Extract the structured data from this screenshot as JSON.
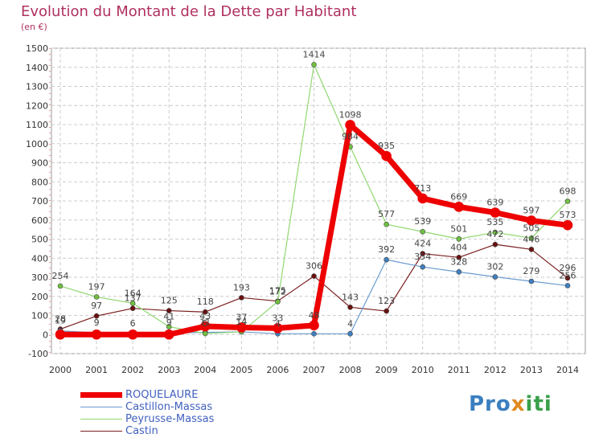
{
  "title": "Evolution du Montant de la Dette par Habitant",
  "subtitle": "(en €)",
  "logo": "Proxiti",
  "colors": {
    "background": "#ffffff",
    "grid": "#cccccc",
    "title": "#b03060",
    "legend_text": "#4060c0"
  },
  "chart_data": {
    "type": "line",
    "title": "Evolution du Montant de la Dette par Habitant",
    "subtitle": "(en €)",
    "xlabel": "",
    "ylabel": "",
    "x": [
      "2000",
      "2001",
      "2002",
      "2003",
      "2004",
      "2005",
      "2006",
      "2007",
      "2008",
      "2009",
      "2010",
      "2011",
      "2012",
      "2013",
      "2014"
    ],
    "ylim": [
      -100,
      1500
    ],
    "yticks": [
      -100,
      0,
      100,
      200,
      300,
      400,
      500,
      600,
      700,
      800,
      900,
      1000,
      1100,
      1200,
      1300,
      1400,
      1500
    ],
    "grid": true,
    "legend_position": "bottom-left",
    "series": [
      {
        "name": "Castin",
        "color": "#7a1e1e",
        "marker": "#6a1010",
        "width": 1.2,
        "values": [
          28,
          97,
          137,
          125,
          118,
          193,
          175,
          306,
          143,
          123,
          424,
          404,
          472,
          446,
          296
        ],
        "labels": [
          true,
          true,
          true,
          true,
          true,
          true,
          true,
          true,
          true,
          true,
          true,
          true,
          true,
          true,
          true
        ]
      },
      {
        "name": "Castillon-Massas",
        "color": "#6a9cd0",
        "marker": "#3f7fc0",
        "width": 1.2,
        "values": [
          19,
          9,
          6,
          9,
          11,
          14,
          4,
          4,
          4,
          392,
          354,
          328,
          302,
          279,
          256
        ],
        "labels": [
          true,
          true,
          true,
          true,
          true,
          true,
          true,
          false,
          true,
          true,
          true,
          true,
          true,
          true,
          true
        ]
      },
      {
        "name": "Peyrusse-Massas",
        "color": "#90d870",
        "marker": "#70c040",
        "width": 1.2,
        "values": [
          254,
          197,
          164,
          41,
          5,
          14,
          172,
          1414,
          984,
          577,
          539,
          501,
          535,
          505,
          698
        ],
        "labels": [
          true,
          true,
          true,
          true,
          true,
          true,
          true,
          true,
          true,
          true,
          true,
          true,
          true,
          true,
          true
        ]
      },
      {
        "name": "ROQUELAURE",
        "color": "#ee0000",
        "marker": "#ee0000",
        "width": 7,
        "values": [
          0,
          0,
          0,
          0,
          43,
          37,
          33,
          48,
          1098,
          935,
          713,
          669,
          639,
          597,
          573
        ],
        "labels": [
          false,
          false,
          false,
          false,
          true,
          true,
          true,
          true,
          true,
          true,
          true,
          true,
          true,
          true,
          true
        ]
      }
    ]
  },
  "legend": [
    {
      "name": "ROQUELAURE",
      "color": "#ee0000",
      "thickness": 7
    },
    {
      "name": "Castillon-Massas",
      "color": "#6a9cd0",
      "thickness": 1.2
    },
    {
      "name": "Peyrusse-Massas",
      "color": "#90d870",
      "thickness": 1.2
    },
    {
      "name": "Castin",
      "color": "#7a1e1e",
      "thickness": 1.2
    }
  ]
}
